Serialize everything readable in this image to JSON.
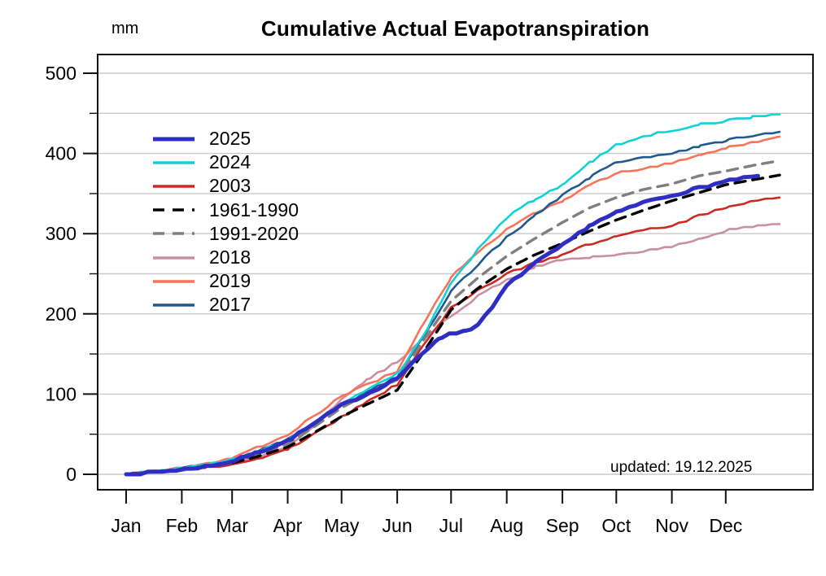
{
  "chart_data": {
    "type": "line",
    "title": "Cumulative Actual Evapotranspiration",
    "ylabel": "mm",
    "xlabel": "",
    "annotation": "updated: 19.12.2025",
    "ylim": [
      0,
      500
    ],
    "grid": "horizontal, every 50 mm, light gray",
    "legend_position": "upper-left",
    "y_ticks_major": [
      0,
      100,
      200,
      300,
      400,
      500
    ],
    "y_ticks_minor": [
      50,
      150,
      250,
      350,
      450
    ],
    "x_tick_labels": [
      "Jan",
      "Feb",
      "Mar",
      "Apr",
      "May",
      "Jun",
      "Jul",
      "Aug",
      "Sep",
      "Oct",
      "Nov",
      "Dec"
    ],
    "x_tick_days": [
      1,
      32,
      60,
      91,
      121,
      152,
      182,
      213,
      244,
      274,
      305,
      335
    ],
    "x_range_days": [
      1,
      365
    ],
    "x_unit": "day of year",
    "colors": {
      "axis": "#111111",
      "gridline": "#c9c9c9",
      "background": "#ffffff"
    },
    "series": [
      {
        "label": "2025",
        "color": "#2e2ec4",
        "style": "solid",
        "width": 5,
        "points": [
          [
            1,
            0
          ],
          [
            15,
            2
          ],
          [
            32,
            6
          ],
          [
            46,
            10
          ],
          [
            60,
            16
          ],
          [
            74,
            27
          ],
          [
            91,
            42
          ],
          [
            105,
            62
          ],
          [
            121,
            86
          ],
          [
            135,
            100
          ],
          [
            152,
            120
          ],
          [
            166,
            150
          ],
          [
            175,
            170
          ],
          [
            182,
            175
          ],
          [
            190,
            179
          ],
          [
            197,
            186
          ],
          [
            205,
            208
          ],
          [
            213,
            235
          ],
          [
            228,
            262
          ],
          [
            244,
            285
          ],
          [
            259,
            310
          ],
          [
            274,
            326
          ],
          [
            289,
            339
          ],
          [
            305,
            348
          ],
          [
            320,
            357
          ],
          [
            335,
            365
          ],
          [
            353,
            372
          ]
        ]
      },
      {
        "label": "2024",
        "color": "#0fd2d6",
        "style": "solid",
        "width": 2.6,
        "points": [
          [
            1,
            0
          ],
          [
            15,
            3
          ],
          [
            32,
            7
          ],
          [
            46,
            12
          ],
          [
            60,
            18
          ],
          [
            74,
            28
          ],
          [
            91,
            42
          ],
          [
            105,
            63
          ],
          [
            121,
            87
          ],
          [
            135,
            105
          ],
          [
            152,
            125
          ],
          [
            166,
            170
          ],
          [
            182,
            238
          ],
          [
            197,
            280
          ],
          [
            213,
            320
          ],
          [
            228,
            342
          ],
          [
            244,
            360
          ],
          [
            259,
            388
          ],
          [
            274,
            410
          ],
          [
            289,
            421
          ],
          [
            305,
            429
          ],
          [
            320,
            436
          ],
          [
            335,
            441
          ],
          [
            350,
            445
          ],
          [
            365,
            448
          ]
        ]
      },
      {
        "label": "2003",
        "color": "#cb2a23",
        "style": "solid",
        "width": 2.6,
        "points": [
          [
            1,
            0
          ],
          [
            15,
            2
          ],
          [
            32,
            5
          ],
          [
            46,
            8
          ],
          [
            60,
            12
          ],
          [
            74,
            20
          ],
          [
            91,
            31
          ],
          [
            105,
            50
          ],
          [
            121,
            71
          ],
          [
            135,
            90
          ],
          [
            152,
            112
          ],
          [
            166,
            160
          ],
          [
            182,
            207
          ],
          [
            197,
            230
          ],
          [
            213,
            250
          ],
          [
            228,
            263
          ],
          [
            244,
            274
          ],
          [
            259,
            287
          ],
          [
            274,
            297
          ],
          [
            289,
            304
          ],
          [
            305,
            310
          ],
          [
            320,
            322
          ],
          [
            335,
            333
          ],
          [
            350,
            340
          ],
          [
            365,
            345
          ]
        ]
      },
      {
        "label": "1961-1990",
        "color": "#000000",
        "style": "dashed",
        "width": 3.4,
        "points": [
          [
            1,
            0
          ],
          [
            15,
            3
          ],
          [
            32,
            6
          ],
          [
            46,
            10
          ],
          [
            60,
            14
          ],
          [
            74,
            22
          ],
          [
            91,
            34
          ],
          [
            105,
            51
          ],
          [
            121,
            72
          ],
          [
            135,
            87
          ],
          [
            152,
            105
          ],
          [
            166,
            150
          ],
          [
            182,
            205
          ],
          [
            197,
            232
          ],
          [
            213,
            256
          ],
          [
            228,
            273
          ],
          [
            244,
            288
          ],
          [
            259,
            303
          ],
          [
            274,
            317
          ],
          [
            289,
            329
          ],
          [
            305,
            341
          ],
          [
            320,
            351
          ],
          [
            335,
            361
          ],
          [
            350,
            367
          ],
          [
            365,
            373
          ]
        ]
      },
      {
        "label": "1991-2020",
        "color": "#7f7f7f",
        "style": "dashed",
        "width": 3.4,
        "points": [
          [
            1,
            0
          ],
          [
            15,
            3
          ],
          [
            32,
            6
          ],
          [
            46,
            11
          ],
          [
            60,
            15
          ],
          [
            74,
            25
          ],
          [
            91,
            38
          ],
          [
            105,
            58
          ],
          [
            121,
            83
          ],
          [
            135,
            100
          ],
          [
            152,
            118
          ],
          [
            166,
            165
          ],
          [
            182,
            216
          ],
          [
            197,
            245
          ],
          [
            213,
            272
          ],
          [
            228,
            293
          ],
          [
            244,
            314
          ],
          [
            259,
            332
          ],
          [
            274,
            345
          ],
          [
            289,
            355
          ],
          [
            305,
            362
          ],
          [
            320,
            372
          ],
          [
            335,
            378
          ],
          [
            350,
            385
          ],
          [
            365,
            391
          ]
        ]
      },
      {
        "label": "2018",
        "color": "#c98fa0",
        "style": "solid",
        "width": 2.6,
        "points": [
          [
            1,
            0
          ],
          [
            15,
            2
          ],
          [
            32,
            5
          ],
          [
            46,
            9
          ],
          [
            60,
            13
          ],
          [
            74,
            22
          ],
          [
            91,
            35
          ],
          [
            105,
            60
          ],
          [
            121,
            93
          ],
          [
            135,
            118
          ],
          [
            152,
            140
          ],
          [
            166,
            168
          ],
          [
            182,
            198
          ],
          [
            197,
            222
          ],
          [
            213,
            242
          ],
          [
            228,
            258
          ],
          [
            244,
            268
          ],
          [
            259,
            270
          ],
          [
            274,
            272
          ],
          [
            289,
            278
          ],
          [
            305,
            284
          ],
          [
            320,
            294
          ],
          [
            335,
            304
          ],
          [
            350,
            309
          ],
          [
            365,
            312
          ]
        ]
      },
      {
        "label": "2019",
        "color": "#f8735a",
        "style": "solid",
        "width": 2.6,
        "points": [
          [
            1,
            0
          ],
          [
            15,
            3
          ],
          [
            32,
            8
          ],
          [
            46,
            13
          ],
          [
            60,
            20
          ],
          [
            74,
            33
          ],
          [
            91,
            49
          ],
          [
            105,
            72
          ],
          [
            121,
            98
          ],
          [
            135,
            112
          ],
          [
            152,
            128
          ],
          [
            166,
            185
          ],
          [
            182,
            246
          ],
          [
            197,
            278
          ],
          [
            213,
            305
          ],
          [
            228,
            325
          ],
          [
            244,
            340
          ],
          [
            259,
            360
          ],
          [
            274,
            375
          ],
          [
            289,
            382
          ],
          [
            305,
            388
          ],
          [
            320,
            398
          ],
          [
            335,
            407
          ],
          [
            350,
            414
          ],
          [
            365,
            421
          ]
        ]
      },
      {
        "label": "2017",
        "color": "#20598f",
        "style": "solid",
        "width": 2.6,
        "points": [
          [
            1,
            0
          ],
          [
            15,
            3
          ],
          [
            32,
            7
          ],
          [
            46,
            12
          ],
          [
            60,
            17
          ],
          [
            74,
            28
          ],
          [
            91,
            43
          ],
          [
            105,
            62
          ],
          [
            121,
            85
          ],
          [
            135,
            102
          ],
          [
            152,
            122
          ],
          [
            166,
            170
          ],
          [
            182,
            228
          ],
          [
            197,
            262
          ],
          [
            213,
            295
          ],
          [
            228,
            322
          ],
          [
            244,
            348
          ],
          [
            259,
            370
          ],
          [
            274,
            388
          ],
          [
            289,
            394
          ],
          [
            305,
            400
          ],
          [
            320,
            408
          ],
          [
            335,
            416
          ],
          [
            350,
            422
          ],
          [
            365,
            427
          ]
        ]
      }
    ]
  }
}
